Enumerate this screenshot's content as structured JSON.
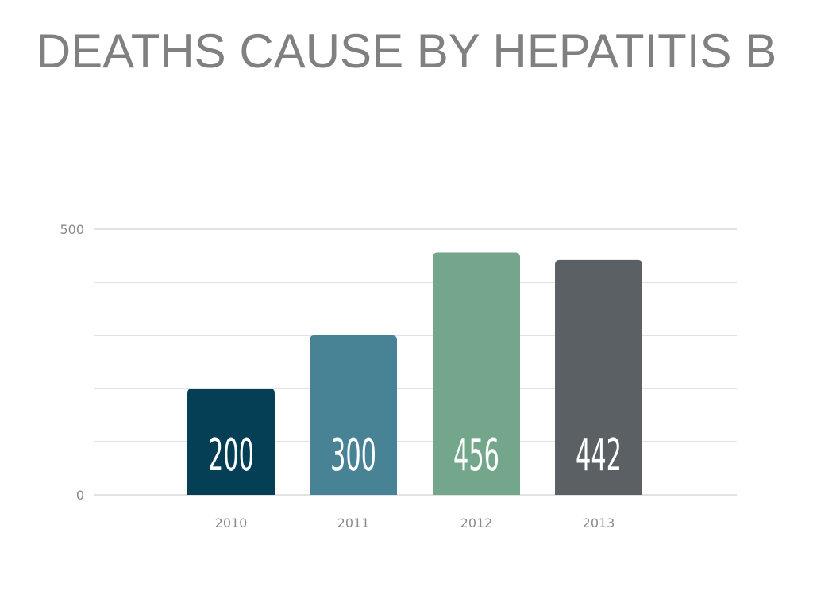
{
  "slide": {
    "title": "DEATHS CAUSE BY HEPATITIS B"
  },
  "chart_data": {
    "type": "bar",
    "title": "DEATHS CAUSE BY HEPATITIS B",
    "categories": [
      "2010",
      "2011",
      "2012",
      "2013"
    ],
    "values": [
      200,
      300,
      456,
      442
    ],
    "data_labels": [
      "200",
      "300",
      "456",
      "442"
    ],
    "bar_colors": [
      "#043f55",
      "#478394",
      "#73a68b",
      "#5a6064"
    ],
    "ylim": [
      0,
      500
    ],
    "yticks_labeled": [
      "0",
      "500"
    ],
    "gridlines": [
      0,
      100,
      200,
      300,
      400,
      500
    ],
    "grid": true,
    "legend": "none",
    "xlabel": "",
    "ylabel": ""
  }
}
